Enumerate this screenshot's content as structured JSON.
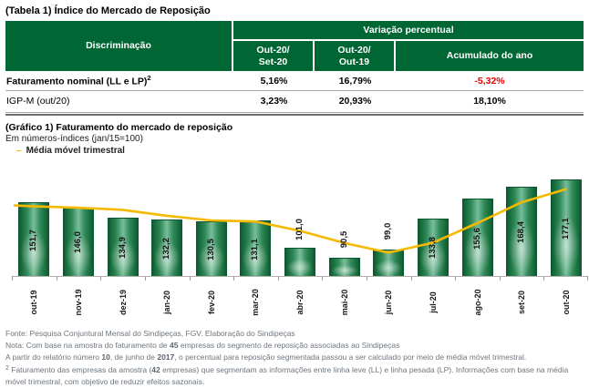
{
  "colors": {
    "header_green": "#006633",
    "bar_dark_green": "#0e5c31",
    "bar_light_green": "#7abd9b",
    "line_yellow": "#f5b900",
    "negative_red": "#ee0000",
    "footer_gray": "#6d767e"
  },
  "table": {
    "title": "(Tabela 1) Índice do Mercado de Reposição",
    "header": {
      "discrimination": "Discriminação",
      "group": "Variação percentual",
      "col1_line1": "Out-20/",
      "col1_line2": "Set-20",
      "col2_line1": "Out-20/",
      "col2_line2": "Out-19",
      "col3": "Acumulado do ano"
    },
    "rows": [
      {
        "label": "Faturamento nominal (LL e LP)",
        "sup": "2",
        "v1": "5,16%",
        "v2": "16,79%",
        "v3": "-5,32%"
      },
      {
        "label": "IGP-M (out/20)",
        "sup": "",
        "v1": "3,23%",
        "v2": "20,93%",
        "v3": "18,10%"
      }
    ]
  },
  "chart": {
    "title": "(Gráfico 1) Faturamento do mercado de reposição",
    "subtitle": "Em números-índices (jan/15=100)",
    "legend_dash": "–",
    "legend_label": "Média móvel trimestral"
  },
  "chart_data": {
    "type": "bar",
    "title": "(Gráfico 1) Faturamento do mercado de reposição",
    "subtitle": "Em números-índices (jan/15=100)",
    "categories": [
      "out-19",
      "nov-19",
      "dez-19",
      "jan-20",
      "fev-20",
      "mar-20",
      "abr-20",
      "mai-20",
      "jun-20",
      "jul-20",
      "ago-20",
      "set-20",
      "out-20"
    ],
    "series": [
      {
        "name": "Faturamento do mercado de reposição (números-índices)",
        "type": "bar",
        "values": [
          151.7,
          146.0,
          134.9,
          132.2,
          130.5,
          131.1,
          101.0,
          90.5,
          99.0,
          133.8,
          155.6,
          168.4,
          177.1
        ],
        "labels": [
          "151,7",
          "146,0",
          "134,9",
          "132,2",
          "130,5",
          "131,1",
          "101,0",
          "90,5",
          "99,0",
          "133,8",
          "155,6",
          "168,4",
          "177,1"
        ]
      },
      {
        "name": "Média móvel trimestral",
        "type": "line",
        "values": [
          148.0,
          146.5,
          144.2,
          137.7,
          132.5,
          131.3,
          120.9,
          107.5,
          96.8,
          107.8,
          129.5,
          152.6,
          167.0
        ],
        "color": "#f5b900"
      }
    ],
    "xlabel": "",
    "ylabel": "",
    "ylim": [
      70,
      190
    ],
    "grid": false,
    "legend_position": "top-left"
  },
  "footer": {
    "fonte": "Fonte: Pesquisa Conjuntural Mensal do Sindipeças, FGV. Elaboração do Sindipeças",
    "nota": {
      "p0": "Nota: Com base na amostra do faturamento de ",
      "b0": "45",
      "p1": " empresas do segmento de reposição associadas ao Sindipeças"
    },
    "nota2": {
      "p0": "A partir do relatório número ",
      "b0": "10",
      "p1": ", de junho de ",
      "b1": "2017",
      "p2": ", o percentual para reposição segmentada passou a ser calculado por meio de média móvel trimestral."
    },
    "nota3": {
      "marker": "2",
      "p0": " Faturamento das empresas da amostra (",
      "b0": "42",
      "p1": "  empresas) que segmentam as informações entre linha leve (LL) e linha pesada (LP). Informações com base na média móvel trimestral, com objetivo de reduzir efeitos sazonais."
    }
  }
}
